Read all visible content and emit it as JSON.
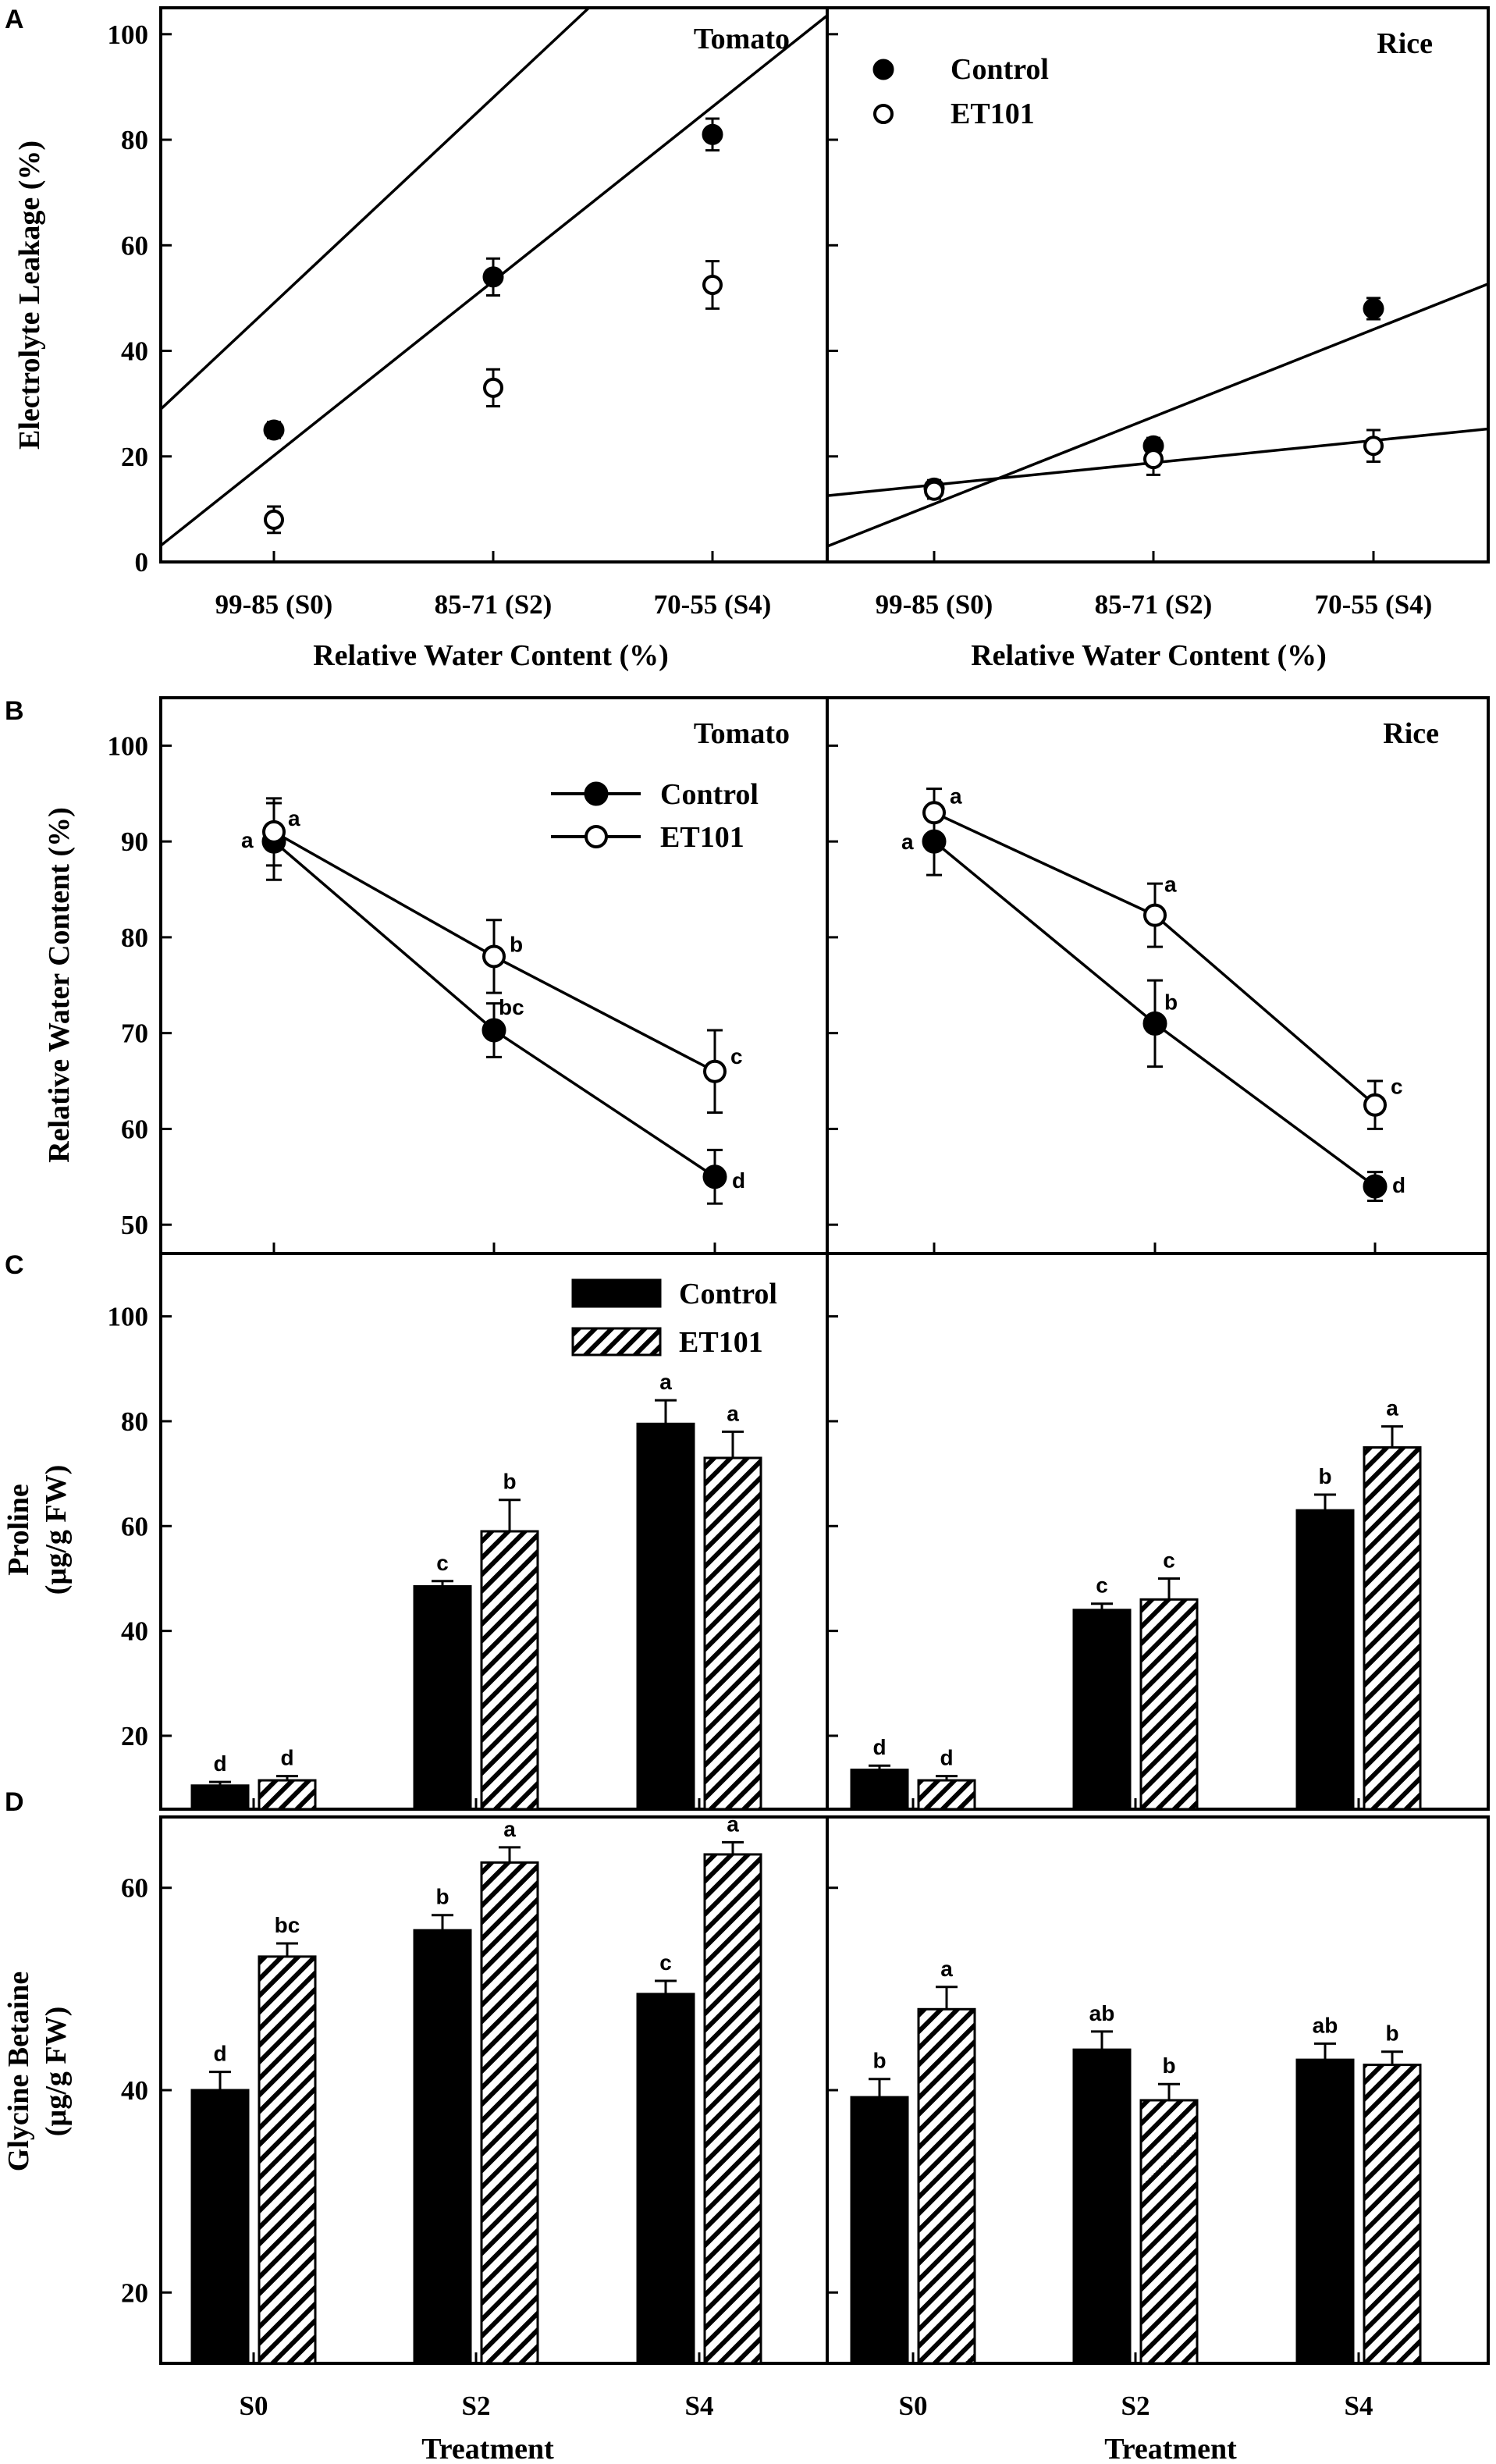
{
  "figure": {
    "panel_letters": [
      "A",
      "B",
      "C",
      "D"
    ],
    "crops": [
      "Tomato",
      "Rice"
    ],
    "legend": {
      "control": "Control",
      "et101": "ET101"
    },
    "colors": {
      "ink": "#000000",
      "background": "#ffffff"
    }
  },
  "chart_data": [
    {
      "id": "A",
      "type": "scatter",
      "subtype": "scatter with linear fit",
      "ylabel": "Electrolyte Leakage (%)",
      "xlabel": "Relative Water Content (%)",
      "ylim": [
        0,
        105
      ],
      "yticks": [
        0,
        20,
        40,
        60,
        80,
        100
      ],
      "categories": [
        "99-85 (S0)",
        "85-71 (S2)",
        "70-55 (S4)"
      ],
      "legend_position": "top-left of Rice panel",
      "panels": [
        {
          "title": "Tomato",
          "series": [
            {
              "name": "Control",
              "marker": "filled",
              "values": [
                25,
                54,
                81
              ],
              "errors": [
                1.5,
                3.5,
                3
              ],
              "fit": [
                10.1,
                38.95
              ]
            },
            {
              "name": "ET101",
              "marker": "open",
              "values": [
                8,
                33,
                52.5
              ],
              "errors": [
                2.5,
                3.5,
                4.5
              ],
              "fit": [
                -12.9,
                33.05
              ]
            }
          ]
        },
        {
          "title": "Rice",
          "series": [
            {
              "name": "Control",
              "marker": "filled",
              "values": [
                14,
                22,
                48
              ],
              "errors": [
                1.5,
                1.5,
                2
              ],
              "fit": [
                -5.5,
                16.5
              ]
            },
            {
              "name": "ET101",
              "marker": "open",
              "values": [
                13.5,
                19.5,
                22
              ],
              "errors": [
                1.5,
                3,
                3
              ],
              "fit": [
                10.4,
                4.2
              ]
            }
          ]
        }
      ]
    },
    {
      "id": "B",
      "type": "line",
      "ylabel": "Relative Water Content (%)",
      "ylim": [
        47,
        105
      ],
      "yticks": [
        50,
        60,
        70,
        80,
        90,
        100
      ],
      "categories": [
        "99-85 (S0)",
        "85-71 (S2)",
        "70-55 (S4)"
      ],
      "legend_position": "top-right of Tomato panel",
      "panels": [
        {
          "title": "Tomato",
          "series": [
            {
              "name": "Control",
              "marker": "filled",
              "values": [
                90,
                70.3,
                55
              ],
              "errors": [
                4,
                2.8,
                2.8
              ],
              "labels": [
                "a",
                "bc",
                "d"
              ]
            },
            {
              "name": "ET101",
              "marker": "open",
              "values": [
                91,
                78,
                66
              ],
              "errors": [
                3.5,
                3.8,
                4.3
              ],
              "labels": [
                "a",
                "b",
                "c"
              ]
            }
          ]
        },
        {
          "title": "Rice",
          "series": [
            {
              "name": "Control",
              "marker": "filled",
              "values": [
                90,
                71,
                54
              ],
              "errors": [
                3.5,
                4.5,
                1.5
              ],
              "labels": [
                "a",
                "b",
                "d"
              ]
            },
            {
              "name": "ET101",
              "marker": "open",
              "values": [
                93,
                82.3,
                62.5
              ],
              "errors": [
                2.5,
                3.3,
                2.5
              ],
              "labels": [
                "a",
                "a",
                "c"
              ]
            }
          ]
        }
      ]
    },
    {
      "id": "C",
      "type": "bar",
      "ylabel": "Proline",
      "ylabel_unit": "(µg/g FW)",
      "ylim": [
        6,
        112
      ],
      "yticks": [
        20,
        40,
        60,
        80,
        100
      ],
      "categories": [
        "S0",
        "S2",
        "S4"
      ],
      "legend_position": "top-right of Tomato panel",
      "panels": [
        {
          "title": "Tomato",
          "series": [
            {
              "name": "Control",
              "fill": "solid",
              "values": [
                10.5,
                48.5,
                79.5
              ],
              "errors": [
                0.7,
                1,
                4.5
              ],
              "labels": [
                "d",
                "c",
                "a"
              ]
            },
            {
              "name": "ET101",
              "fill": "hatched",
              "values": [
                11.5,
                59,
                73
              ],
              "errors": [
                0.8,
                6,
                5
              ],
              "labels": [
                "d",
                "b",
                "a"
              ]
            }
          ]
        },
        {
          "title": "Rice",
          "series": [
            {
              "name": "Control",
              "fill": "solid",
              "values": [
                13.5,
                44,
                63
              ],
              "errors": [
                0.8,
                1.2,
                3
              ],
              "labels": [
                "d",
                "c",
                "b"
              ]
            },
            {
              "name": "ET101",
              "fill": "hatched",
              "values": [
                11.5,
                46,
                75
              ],
              "errors": [
                0.8,
                4,
                4
              ],
              "labels": [
                "d",
                "c",
                "a"
              ]
            }
          ]
        }
      ]
    },
    {
      "id": "D",
      "type": "bar",
      "ylabel": "Glycine Betaine",
      "ylabel_unit": "(µg/g FW)",
      "xlabel": "Treatment",
      "ylim": [
        13,
        67
      ],
      "yticks": [
        20,
        40,
        60
      ],
      "categories": [
        "S0",
        "S2",
        "S4"
      ],
      "panels": [
        {
          "series": [
            {
              "name": "Control",
              "fill": "solid",
              "values": [
                40,
                55.8,
                49.5
              ],
              "errors": [
                1.8,
                1.5,
                1.3
              ],
              "labels": [
                "d",
                "b",
                "c"
              ]
            },
            {
              "name": "ET101",
              "fill": "hatched",
              "values": [
                53.2,
                62.5,
                63.3
              ],
              "errors": [
                1.3,
                1.5,
                1.2
              ],
              "labels": [
                "bc",
                "a",
                "a"
              ]
            }
          ]
        },
        {
          "series": [
            {
              "name": "Control",
              "fill": "solid",
              "values": [
                39.3,
                44,
                43
              ],
              "errors": [
                1.8,
                1.8,
                1.6
              ],
              "labels": [
                "b",
                "ab",
                "ab"
              ]
            },
            {
              "name": "ET101",
              "fill": "hatched",
              "values": [
                48,
                39,
                42.5
              ],
              "errors": [
                2.2,
                1.6,
                1.3
              ],
              "labels": [
                "a",
                "b",
                "b"
              ]
            }
          ]
        }
      ]
    }
  ]
}
